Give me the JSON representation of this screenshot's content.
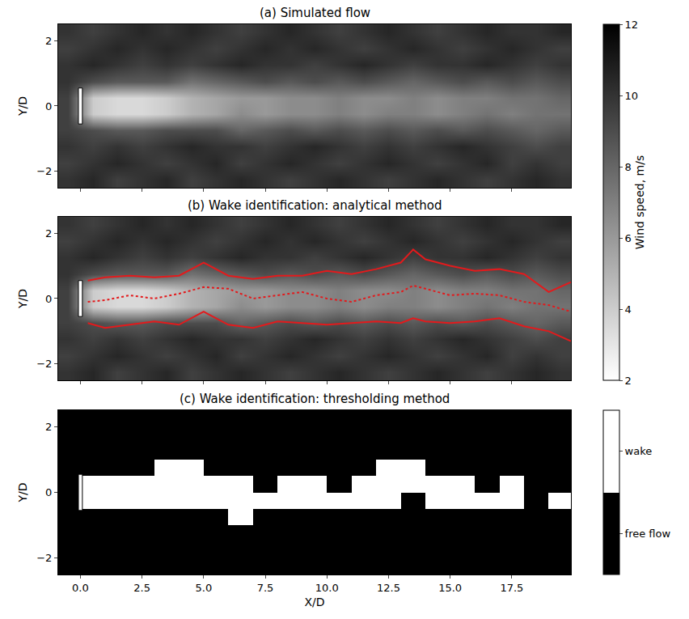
{
  "chart_data": [
    {
      "type": "heatmap",
      "title": "(a) Simulated flow",
      "ylabel": "Y/D",
      "xlim": [
        -0.9,
        19.9
      ],
      "xticks": [
        {
          "value": 0,
          "label": "0.0"
        },
        {
          "value": 2.5,
          "label": "2.5"
        },
        {
          "value": 5,
          "label": "5.0"
        },
        {
          "value": 7.5,
          "label": "7.5"
        },
        {
          "value": 10,
          "label": "10.0"
        },
        {
          "value": 12.5,
          "label": "12.5"
        },
        {
          "value": 15,
          "label": "15.0"
        },
        {
          "value": 17.5,
          "label": "17.5"
        }
      ],
      "ylim": [
        -2.5,
        2.5
      ],
      "yticks": [
        {
          "value": -2,
          "label": "−2"
        },
        0,
        2
      ],
      "tick_labels": "y",
      "turbine": {
        "x": 0,
        "y": [
          -0.55,
          0.55
        ]
      },
      "x": [
        -0.5,
        0.5,
        1.5,
        2.5,
        3.5,
        4.5,
        5.5,
        6.5,
        7.5,
        8.5,
        9.5,
        10.5,
        11.5,
        12.5,
        13.5,
        14.5,
        15.5,
        16.5,
        17.5,
        18.5,
        19.5
      ],
      "y": [
        -2.25,
        -1.75,
        -1.25,
        -0.75,
        -0.25,
        0.25,
        0.75,
        1.25,
        1.75,
        2.25
      ],
      "cells": [
        [
          10,
          10.5,
          9.5,
          10,
          10.5,
          9.5,
          10,
          10.5,
          10,
          9.5,
          10,
          10.5,
          10,
          9.5,
          10,
          10.5,
          10,
          9.5,
          10,
          10.5,
          10
        ],
        [
          9.5,
          10,
          10.5,
          10,
          9.5,
          10,
          10.5,
          9.5,
          10,
          10.5,
          10,
          9.5,
          10,
          10.5,
          10,
          9.5,
          10,
          10.5,
          9.5,
          10,
          9.5
        ],
        [
          10,
          9.5,
          10,
          9.5,
          10,
          10.5,
          10,
          10,
          9.5,
          10,
          10.5,
          10,
          9.5,
          10,
          9.5,
          10,
          10.5,
          10,
          9.5,
          9,
          9.5
        ],
        [
          9.5,
          9,
          8.5,
          8.5,
          9,
          9,
          9,
          8,
          8.5,
          9,
          8.5,
          9,
          8.5,
          9,
          8.5,
          9,
          8.5,
          9,
          8.5,
          8,
          8.5
        ],
        [
          9.5,
          4,
          3.5,
          3.5,
          4,
          5,
          5.5,
          6.5,
          6,
          6.5,
          6.5,
          7,
          6.5,
          7,
          7,
          6.5,
          7,
          7.5,
          7,
          7.5,
          7.5
        ],
        [
          9.5,
          4,
          3.5,
          3.5,
          4,
          5,
          5.5,
          6,
          6,
          6.5,
          6.5,
          7,
          6.5,
          6.5,
          7,
          6.5,
          7,
          7,
          7.5,
          7.5,
          8
        ],
        [
          10,
          9,
          8.5,
          8.5,
          8.5,
          7.5,
          8,
          8.5,
          9,
          8.5,
          9,
          8.5,
          9,
          8.5,
          8,
          8.5,
          9,
          8.5,
          9,
          8.5,
          9
        ],
        [
          10,
          10.5,
          10,
          9.5,
          10,
          9.5,
          10,
          10.5,
          10,
          10,
          9.5,
          10,
          10.5,
          10,
          9.5,
          10,
          10,
          10.5,
          10,
          9.5,
          10
        ],
        [
          9.5,
          10,
          10.5,
          10,
          10.5,
          10,
          9.5,
          10,
          10.5,
          10,
          10.5,
          10,
          9.5,
          10,
          10.5,
          10,
          9.5,
          10,
          10.5,
          10,
          9.5
        ],
        [
          10,
          9.5,
          10,
          10.5,
          10,
          10.5,
          10,
          9.5,
          10,
          10.5,
          10,
          9.5,
          10,
          10.5,
          10,
          9.5,
          10,
          10.5,
          10,
          10,
          10.5
        ]
      ],
      "colorbar": {
        "label": "Wind speed, m/s",
        "lim": [
          2,
          12
        ],
        "ticks": [
          2,
          4,
          6,
          8,
          10,
          12
        ]
      }
    },
    {
      "type": "heatmap",
      "title": "(b) Wake identification: analytical method",
      "ylabel": "Y/D",
      "xlim": [
        -0.9,
        19.9
      ],
      "xticks": [
        {
          "value": 0,
          "label": "0.0"
        },
        {
          "value": 2.5,
          "label": "2.5"
        },
        {
          "value": 5,
          "label": "5.0"
        },
        {
          "value": 7.5,
          "label": "7.5"
        },
        {
          "value": 10,
          "label": "10.0"
        },
        {
          "value": 12.5,
          "label": "12.5"
        },
        {
          "value": 15,
          "label": "15.0"
        },
        {
          "value": 17.5,
          "label": "17.5"
        }
      ],
      "ylim": [
        -2.5,
        2.5
      ],
      "yticks": [
        {
          "value": -2,
          "label": "−2"
        },
        0,
        2
      ],
      "tick_labels": "y",
      "turbine": {
        "x": 0,
        "y": [
          -0.55,
          0.55
        ]
      },
      "x": [
        -0.5,
        0.5,
        1.5,
        2.5,
        3.5,
        4.5,
        5.5,
        6.5,
        7.5,
        8.5,
        9.5,
        10.5,
        11.5,
        12.5,
        13.5,
        14.5,
        15.5,
        16.5,
        17.5,
        18.5,
        19.5
      ],
      "y": [
        -2.25,
        -1.75,
        -1.25,
        -0.75,
        -0.25,
        0.25,
        0.75,
        1.25,
        1.75,
        2.25
      ],
      "cells": [
        [
          10,
          10.5,
          9.5,
          10,
          10.5,
          9.5,
          10,
          10.5,
          10,
          9.5,
          10,
          10.5,
          10,
          9.5,
          10,
          10.5,
          10,
          9.5,
          10,
          10.5,
          10
        ],
        [
          9.5,
          10,
          10.5,
          10,
          9.5,
          10,
          10.5,
          9.5,
          10,
          10.5,
          10,
          9.5,
          10,
          10.5,
          10,
          9.5,
          10,
          10.5,
          9.5,
          10,
          9.5
        ],
        [
          10,
          9.5,
          10,
          9.5,
          10,
          10.5,
          10,
          10,
          9.5,
          10,
          10.5,
          10,
          9.5,
          10,
          9.5,
          10,
          10.5,
          10,
          9.5,
          9,
          9.5
        ],
        [
          9.5,
          9,
          8.5,
          8.5,
          9,
          9,
          9,
          8,
          8.5,
          9,
          8.5,
          9,
          8.5,
          9,
          8.5,
          9,
          8.5,
          9,
          8.5,
          8,
          8.5
        ],
        [
          9.5,
          4,
          3.5,
          3.5,
          4,
          5,
          5.5,
          6.5,
          6,
          6.5,
          6.5,
          7,
          6.5,
          7,
          7,
          6.5,
          7,
          7.5,
          7,
          7.5,
          7.5
        ],
        [
          9.5,
          4,
          3.5,
          3.5,
          4,
          5,
          5.5,
          6,
          6,
          6.5,
          6.5,
          7,
          6.5,
          6.5,
          7,
          6.5,
          7,
          7,
          7.5,
          7.5,
          8
        ],
        [
          10,
          9,
          8.5,
          8.5,
          8.5,
          7.5,
          8,
          8.5,
          9,
          8.5,
          9,
          8.5,
          9,
          8.5,
          8,
          8.5,
          9,
          8.5,
          9,
          8.5,
          9
        ],
        [
          10,
          10.5,
          10,
          9.5,
          10,
          9.5,
          10,
          10.5,
          10,
          10,
          9.5,
          10,
          10.5,
          10,
          9.5,
          10,
          10,
          10.5,
          10,
          9.5,
          10
        ],
        [
          9.5,
          10,
          10.5,
          10,
          10.5,
          10,
          9.5,
          10,
          10.5,
          10,
          10.5,
          10,
          9.5,
          10,
          10.5,
          10,
          9.5,
          10,
          10.5,
          10,
          9.5
        ],
        [
          10,
          9.5,
          10,
          10.5,
          10,
          10.5,
          10,
          9.5,
          10,
          10.5,
          10,
          9.5,
          10,
          10.5,
          10,
          9.5,
          10,
          10.5,
          10,
          10,
          10.5
        ]
      ],
      "lines_x": [
        0.3,
        1,
        2,
        3,
        4,
        5,
        6,
        7,
        8,
        9,
        10,
        11,
        12,
        13,
        13.5,
        14,
        15,
        16,
        17,
        18,
        19,
        19.9
      ],
      "series": [
        {
          "color": "#e31a1c",
          "line_style": "solid",
          "values": [
            0.55,
            0.65,
            0.7,
            0.65,
            0.7,
            1.1,
            0.7,
            0.6,
            0.7,
            0.7,
            0.85,
            0.75,
            0.9,
            1.1,
            1.5,
            1.2,
            1.0,
            0.85,
            0.9,
            0.75,
            0.2,
            0.5
          ]
        },
        {
          "color": "#e31a1c",
          "line_style": "solid",
          "values": [
            -0.75,
            -0.9,
            -0.8,
            -0.7,
            -0.8,
            -0.4,
            -0.8,
            -0.9,
            -0.7,
            -0.75,
            -0.8,
            -0.75,
            -0.7,
            -0.75,
            -0.6,
            -0.7,
            -0.75,
            -0.7,
            -0.6,
            -0.85,
            -1.0,
            -1.3
          ]
        },
        {
          "color": "#e31a1c",
          "line_style": "dotted",
          "values": [
            -0.1,
            -0.05,
            0.1,
            0.0,
            0.15,
            0.35,
            0.3,
            0.0,
            0.1,
            0.2,
            0.0,
            -0.1,
            0.1,
            0.2,
            0.4,
            0.3,
            0.1,
            0.15,
            0.1,
            -0.1,
            -0.2,
            -0.4
          ]
        }
      ]
    },
    {
      "type": "heatmap",
      "title": "(c) Wake identification: thresholding method",
      "xlabel": "X/D",
      "ylabel": "Y/D",
      "xlim": [
        -0.9,
        19.9
      ],
      "xticks": [
        {
          "value": 0,
          "label": "0.0"
        },
        {
          "value": 2.5,
          "label": "2.5"
        },
        {
          "value": 5,
          "label": "5.0"
        },
        {
          "value": 7.5,
          "label": "7.5"
        },
        {
          "value": 10,
          "label": "10.0"
        },
        {
          "value": 12.5,
          "label": "12.5"
        },
        {
          "value": 15,
          "label": "15.0"
        },
        {
          "value": 17.5,
          "label": "17.5"
        }
      ],
      "ylim": [
        -2.5,
        2.5
      ],
      "yticks": [
        {
          "value": -2,
          "label": "−2"
        },
        0,
        2
      ],
      "turbine": {
        "x": 0,
        "y": [
          -0.55,
          0.55
        ]
      },
      "x": [
        -0.5,
        0.5,
        1.5,
        2.5,
        3.5,
        4.5,
        5.5,
        6.5,
        7.5,
        8.5,
        9.5,
        10.5,
        11.5,
        12.5,
        13.5,
        14.5,
        15.5,
        16.5,
        17.5,
        18.5,
        19.5
      ],
      "y": [
        -2.25,
        -1.75,
        -1.25,
        -0.75,
        -0.25,
        0.25,
        0.75,
        1.25,
        1.75,
        2.25
      ],
      "cells": [
        [
          0,
          0,
          0,
          0,
          0,
          0,
          0,
          0,
          0,
          0,
          0,
          0,
          0,
          0,
          0,
          0,
          0,
          0,
          0,
          0,
          0
        ],
        [
          0,
          0,
          0,
          0,
          0,
          0,
          0,
          0,
          0,
          0,
          0,
          0,
          0,
          0,
          0,
          0,
          0,
          0,
          0,
          0,
          0
        ],
        [
          0,
          0,
          0,
          0,
          0,
          0,
          0,
          0,
          0,
          0,
          0,
          0,
          0,
          0,
          0,
          0,
          0,
          0,
          0,
          0,
          0
        ],
        [
          0,
          0,
          0,
          0,
          0,
          0,
          0,
          1,
          0,
          0,
          0,
          0,
          0,
          0,
          0,
          0,
          0,
          0,
          0,
          0,
          0
        ],
        [
          0,
          1,
          1,
          1,
          1,
          1,
          1,
          1,
          1,
          1,
          1,
          1,
          1,
          1,
          0,
          1,
          1,
          1,
          1,
          0,
          1
        ],
        [
          0,
          1,
          1,
          1,
          1,
          1,
          1,
          1,
          0,
          1,
          1,
          0,
          1,
          1,
          1,
          1,
          1,
          0,
          1,
          0,
          0
        ],
        [
          0,
          0,
          0,
          0,
          1,
          1,
          0,
          0,
          0,
          0,
          0,
          0,
          0,
          1,
          1,
          0,
          0,
          0,
          0,
          0,
          0
        ],
        [
          0,
          0,
          0,
          0,
          0,
          0,
          0,
          0,
          0,
          0,
          0,
          0,
          0,
          0,
          0,
          0,
          0,
          0,
          0,
          0,
          0
        ],
        [
          0,
          0,
          0,
          0,
          0,
          0,
          0,
          0,
          0,
          0,
          0,
          0,
          0,
          0,
          0,
          0,
          0,
          0,
          0,
          0,
          0
        ],
        [
          0,
          0,
          0,
          0,
          0,
          0,
          0,
          0,
          0,
          0,
          0,
          0,
          0,
          0,
          0,
          0,
          0,
          0,
          0,
          0,
          0
        ]
      ],
      "colorbar": {
        "lim": [
          0,
          1
        ],
        "ticks": [
          {
            "value": 0.25,
            "label": "free flow"
          },
          {
            "value": 0.75,
            "label": "wake"
          }
        ]
      }
    }
  ]
}
